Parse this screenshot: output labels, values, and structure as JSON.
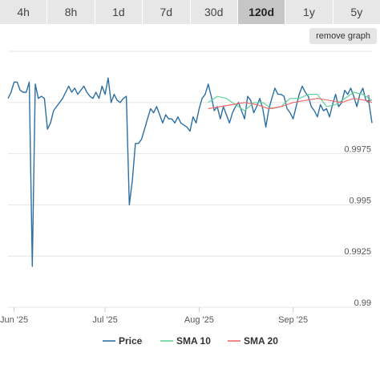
{
  "tabs": [
    {
      "label": "4h",
      "active": false
    },
    {
      "label": "8h",
      "active": false
    },
    {
      "label": "1d",
      "active": false
    },
    {
      "label": "7d",
      "active": false
    },
    {
      "label": "30d",
      "active": false
    },
    {
      "label": "120d",
      "active": true
    },
    {
      "label": "1y",
      "active": false
    },
    {
      "label": "5y",
      "active": false
    }
  ],
  "remove_graph_label": "remove graph",
  "chart_data": {
    "type": "line",
    "x_ticks": [
      "Jun '25",
      "Jul '25",
      "Aug '25",
      "Sep '25"
    ],
    "y_ticks": [
      {
        "value": 1.0,
        "label": "1"
      },
      {
        "value": 0.9975,
        "label": "0.9975"
      },
      {
        "value": 0.995,
        "label": "0.995"
      },
      {
        "value": 0.9925,
        "label": "0.9925"
      },
      {
        "value": 0.99,
        "label": "0.99"
      }
    ],
    "ylim": [
      0.99,
      1.0025
    ],
    "x_range_days": [
      -2,
      118
    ],
    "grid": true,
    "legend_position": "bottom-center",
    "series": [
      {
        "name": "Price",
        "color": "#2b6fa3",
        "points": [
          [
            -2,
            1.0002
          ],
          [
            -1,
            1.0005
          ],
          [
            0,
            1.001
          ],
          [
            1,
            1.001
          ],
          [
            2,
            1.0006
          ],
          [
            3,
            1.0005
          ],
          [
            4,
            1.0005
          ],
          [
            5,
            1.001
          ],
          [
            6,
            0.992
          ],
          [
            7,
            1.0009
          ],
          [
            8,
            1.0002
          ],
          [
            9,
            1.0003
          ],
          [
            10,
            1.0002
          ],
          [
            11,
            0.9987
          ],
          [
            12,
            0.999
          ],
          [
            13,
            0.9996
          ],
          [
            14,
            0.9998
          ],
          [
            15,
            1.0
          ],
          [
            16,
            1.0002
          ],
          [
            17,
            1.0005
          ],
          [
            18,
            1.0008
          ],
          [
            19,
            1.0005
          ],
          [
            20,
            1.0007
          ],
          [
            21,
            1.0004
          ],
          [
            22,
            1.0006
          ],
          [
            23,
            1.0008
          ],
          [
            24,
            1.0005
          ],
          [
            25,
            1.0003
          ],
          [
            26,
            1.0002
          ],
          [
            27,
            1.0005
          ],
          [
            28,
            1.0002
          ],
          [
            29,
            1.0008
          ],
          [
            30,
            1.0004
          ],
          [
            31,
            1.0012
          ],
          [
            32,
            1.0
          ],
          [
            33,
            1.0004
          ],
          [
            34,
            1.0001
          ],
          [
            35,
            1.0
          ],
          [
            36,
            1.0002
          ],
          [
            37,
            1.0003
          ],
          [
            38,
            0.995
          ],
          [
            39,
            0.9962
          ],
          [
            40,
            0.998
          ],
          [
            41,
            0.998
          ],
          [
            42,
            0.9982
          ],
          [
            43,
            0.9987
          ],
          [
            44,
            0.9992
          ],
          [
            45,
            0.9997
          ],
          [
            46,
            0.9995
          ],
          [
            47,
            0.9998
          ],
          [
            48,
            0.9994
          ],
          [
            49,
            0.999
          ],
          [
            50,
            0.9994
          ],
          [
            51,
            0.9992
          ],
          [
            52,
            0.9992
          ],
          [
            53,
            0.999
          ],
          [
            54,
            0.9993
          ],
          [
            55,
            0.999
          ],
          [
            56,
            0.9989
          ],
          [
            57,
            0.9988
          ],
          [
            58,
            0.9986
          ],
          [
            59,
            0.9993
          ],
          [
            60,
            0.999
          ],
          [
            61,
            0.9997
          ],
          [
            62,
            1.0002
          ],
          [
            63,
            1.0004
          ],
          [
            64,
            1.0009
          ],
          [
            65,
            1.0003
          ],
          [
            66,
            0.9996
          ],
          [
            67,
            0.9998
          ],
          [
            68,
            0.9992
          ],
          [
            69,
            0.9998
          ],
          [
            70,
            0.9994
          ],
          [
            71,
            0.999
          ],
          [
            72,
            0.9995
          ],
          [
            73,
            0.9998
          ],
          [
            74,
            1.0
          ],
          [
            75,
            0.9996
          ],
          [
            76,
            0.9992
          ],
          [
            77,
            1.0003
          ],
          [
            78,
            1.0001
          ],
          [
            79,
            0.9995
          ],
          [
            80,
            0.9998
          ],
          [
            81,
            1.0002
          ],
          [
            82,
            0.9997
          ],
          [
            83,
            0.9988
          ],
          [
            84,
            0.9997
          ],
          [
            85,
            1.0002
          ],
          [
            86,
            1.0007
          ],
          [
            87,
            1.0004
          ],
          [
            88,
            1.0004
          ],
          [
            89,
            1.0003
          ],
          [
            90,
            0.9997
          ],
          [
            91,
            0.9995
          ],
          [
            92,
            0.9992
          ],
          [
            93,
            0.9998
          ],
          [
            94,
            1.0004
          ],
          [
            95,
            1.0008
          ],
          [
            96,
            1.0005
          ],
          [
            97,
            1.0003
          ],
          [
            98,
            0.9998
          ],
          [
            99,
            0.9996
          ],
          [
            100,
            0.9993
          ],
          [
            101,
            0.9999
          ],
          [
            102,
            0.9996
          ],
          [
            103,
            0.9997
          ],
          [
            104,
            0.9993
          ],
          [
            105,
            0.9999
          ],
          [
            106,
            1.0004
          ],
          [
            107,
            0.9998
          ],
          [
            108,
            1.0
          ],
          [
            109,
            1.0006
          ],
          [
            110,
            1.0004
          ],
          [
            111,
            1.0007
          ],
          [
            112,
            1.0003
          ],
          [
            113,
            0.9998
          ],
          [
            114,
            1.0004
          ],
          [
            115,
            1.0007
          ],
          [
            116,
            1.0001
          ],
          [
            117,
            1.0
          ],
          [
            118,
            0.999
          ]
        ]
      },
      {
        "name": "SMA 10",
        "color": "#5fd39a",
        "points": [
          [
            64,
            1.0
          ],
          [
            67,
            1.0003
          ],
          [
            70,
            1.0002
          ],
          [
            73,
            0.9999
          ],
          [
            76,
            0.9996
          ],
          [
            79,
            1.0
          ],
          [
            82,
            1.0
          ],
          [
            85,
            0.9997
          ],
          [
            88,
            0.9998
          ],
          [
            91,
            1.0002
          ],
          [
            94,
            1.0002
          ],
          [
            97,
            1.0004
          ],
          [
            100,
            1.0004
          ],
          [
            103,
            0.9998
          ],
          [
            106,
            0.9999
          ],
          [
            109,
            1.0002
          ],
          [
            112,
            1.0005
          ],
          [
            115,
            1.0004
          ],
          [
            118,
            1.0001
          ]
        ]
      },
      {
        "name": "SMA 20",
        "color": "#f06a6a",
        "points": [
          [
            64,
            0.9997
          ],
          [
            68,
            0.9998
          ],
          [
            72,
            0.9999
          ],
          [
            76,
            1.0
          ],
          [
            80,
            0.9999
          ],
          [
            84,
            0.9997
          ],
          [
            88,
            0.9998
          ],
          [
            92,
            1.0
          ],
          [
            96,
            1.0001
          ],
          [
            100,
            1.0002
          ],
          [
            104,
            1.0001
          ],
          [
            108,
            1.0
          ],
          [
            112,
            1.0002
          ],
          [
            116,
            1.0001
          ],
          [
            118,
            1.0
          ]
        ]
      }
    ]
  }
}
